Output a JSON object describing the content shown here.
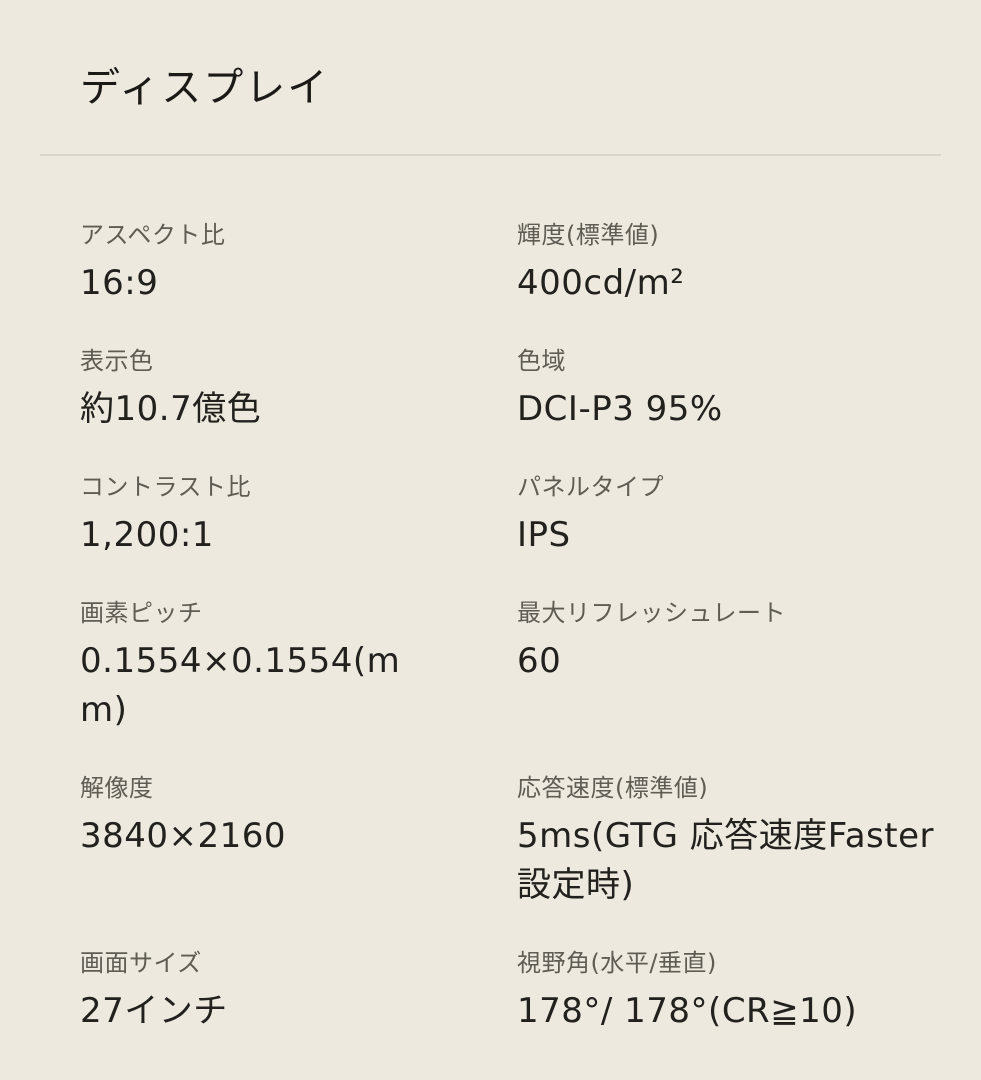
{
  "page": {
    "section_title": "ディスプレイ",
    "background_color": "#EDE9DE",
    "label_color": "#5F5C54",
    "value_color": "#22211D",
    "divider_color": "#D9D5C9"
  },
  "specs": [
    {
      "label": "アスペクト比",
      "value": "16:9"
    },
    {
      "label": "輝度(標準値)",
      "value": "400cd/m²"
    },
    {
      "label": "表示色",
      "value": "約10.7億色"
    },
    {
      "label": "色域",
      "value": "DCI-P3 95%"
    },
    {
      "label": "コントラスト比",
      "value": "1,200:1"
    },
    {
      "label": "パネルタイプ",
      "value": "IPS"
    },
    {
      "label": "画素ピッチ",
      "value": "0.1554×0.1554(mm)"
    },
    {
      "label": "最大リフレッシュレート",
      "value": "60"
    },
    {
      "label": "解像度",
      "value": "3840×2160"
    },
    {
      "label": "応答速度(標準値)",
      "value": "5ms(GTG 応答速度Faster設定時)"
    },
    {
      "label": "画面サイズ",
      "value": "27インチ"
    },
    {
      "label": "視野角(水平/垂直)",
      "value": "178°/ 178°(CR≧10)"
    }
  ]
}
